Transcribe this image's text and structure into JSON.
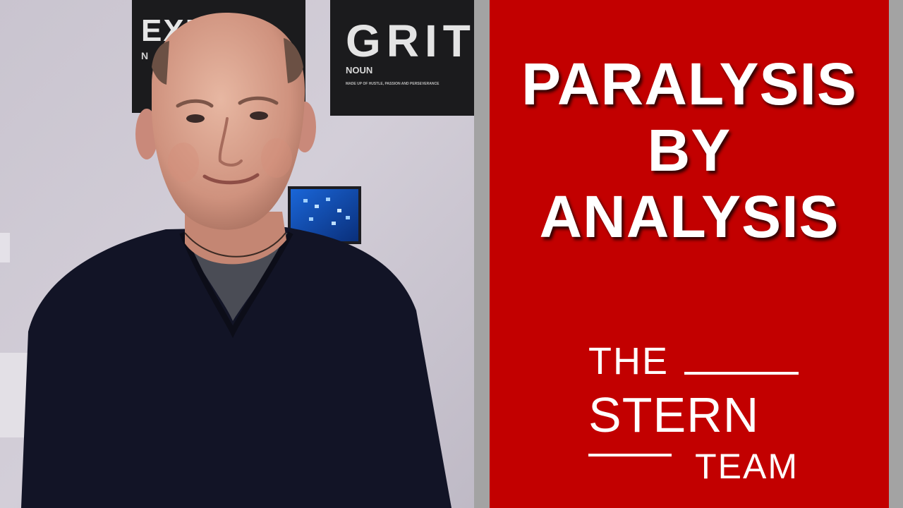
{
  "thumbnail": {
    "headline_lines": [
      "PARALYSIS",
      "BY",
      "ANALYSIS"
    ],
    "logo": {
      "line1": "THE",
      "line2": "STERN",
      "line3": "TEAM"
    },
    "background_poster": {
      "left_word": "EXP  ON",
      "left_sub": "N",
      "right_word": "GRIT",
      "right_sub": "NOUN",
      "right_small": "MADE UP OF HUSTLE, PASSION AND PERSEVERANCE"
    },
    "colors": {
      "panel_red": "#c20000",
      "separator_gray": "#a3a3a3",
      "text_white": "#ffffff"
    }
  }
}
